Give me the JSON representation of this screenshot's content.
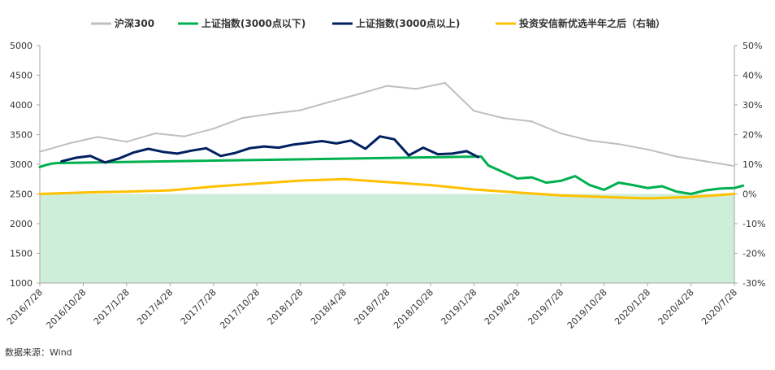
{
  "chart_data": {
    "type": "line",
    "title": "",
    "legend_position": "top",
    "grid": false,
    "x_ticks": [
      "2016/7/28",
      "2016/10/28",
      "2017/1/28",
      "2017/4/28",
      "2017/7/28",
      "2017/10/28",
      "2018/1/28",
      "2018/4/28",
      "2018/7/28",
      "2018/10/28",
      "2019/1/28",
      "2019/4/28",
      "2019/7/28",
      "2019/10/28",
      "2020/1/28",
      "2020/4/28",
      "2020/7/28"
    ],
    "y_left": {
      "range": [
        1000,
        5000
      ],
      "ticks": [
        "1000",
        "1500",
        "2000",
        "2500",
        "3000",
        "3500",
        "4000",
        "4500",
        "5000"
      ]
    },
    "y_right": {
      "range": [
        -30,
        50
      ],
      "unit": "%",
      "ticks": [
        "-30%",
        "-20%",
        "-10%",
        "0%",
        "10%",
        "20%",
        "30%",
        "40%",
        "50%"
      ]
    },
    "shaded_band": {
      "axis": "left",
      "from": 1000,
      "to": 2500,
      "color": "#cdeed8"
    },
    "series": [
      {
        "name": "沪深300",
        "axis": "left",
        "color": "#bfbfbf",
        "x": [
          0,
          2,
          4,
          6,
          8,
          10,
          12,
          14,
          16,
          18,
          20,
          22,
          24,
          26,
          28,
          30,
          32,
          34,
          36,
          38,
          40,
          42,
          44,
          46,
          48
        ],
        "values": [
          3210,
          3350,
          3460,
          3380,
          3520,
          3470,
          3600,
          3780,
          3850,
          3910,
          4050,
          4180,
          4320,
          4270,
          4370,
          3900,
          3780,
          3720,
          3520,
          3400,
          3340,
          3250,
          3130,
          3050,
          2970
        ]
      },
      {
        "name": "上证指数(3000点以下)",
        "axis": "left",
        "color": "#00b050",
        "x": [
          0,
          0.4,
          0.8,
          1.2,
          30.5,
          31,
          32,
          33,
          34,
          35,
          36,
          37,
          38,
          39,
          40,
          41,
          42,
          43,
          44,
          45,
          46,
          47,
          48,
          48.6
        ],
        "values": [
          2955,
          2985,
          3010,
          3020,
          3130,
          2980,
          2870,
          2760,
          2780,
          2690,
          2720,
          2800,
          2650,
          2570,
          2690,
          2650,
          2600,
          2630,
          2540,
          2500,
          2560,
          2590,
          2600,
          2640
        ]
      },
      {
        "name": "上证指数(3000点以上)",
        "axis": "left",
        "color": "#002060",
        "x": [
          1.5,
          2.5,
          3.5,
          4.5,
          5.5,
          6.5,
          7.5,
          8.5,
          9.5,
          10.5,
          11.5,
          12.5,
          13.5,
          14.5,
          15.5,
          16.5,
          17.5,
          18.5,
          19.5,
          20.5,
          21.5,
          22.5,
          23.5,
          24.5,
          25.5,
          26.5,
          27.5,
          28.5,
          29.5,
          30.3
        ],
        "values": [
          3050,
          3110,
          3140,
          3030,
          3100,
          3200,
          3260,
          3210,
          3180,
          3230,
          3270,
          3140,
          3190,
          3270,
          3300,
          3280,
          3330,
          3360,
          3390,
          3350,
          3400,
          3260,
          3470,
          3420,
          3150,
          3280,
          3170,
          3180,
          3220,
          3120
        ]
      },
      {
        "name": "投资安信新优选半年之后（右轴）",
        "axis": "right",
        "color": "#ffc000",
        "x": [
          0,
          3,
          6,
          9,
          12,
          15,
          18,
          21,
          24,
          27,
          30,
          33,
          36,
          39,
          42,
          45,
          48
        ],
        "values": [
          0,
          0.5,
          0.8,
          1.2,
          2.5,
          3.5,
          4.5,
          5.0,
          4.0,
          3.0,
          1.5,
          0.5,
          -0.5,
          -1.0,
          -1.5,
          -1.0,
          0
        ]
      }
    ]
  },
  "source_label": "数据来源：Wind"
}
